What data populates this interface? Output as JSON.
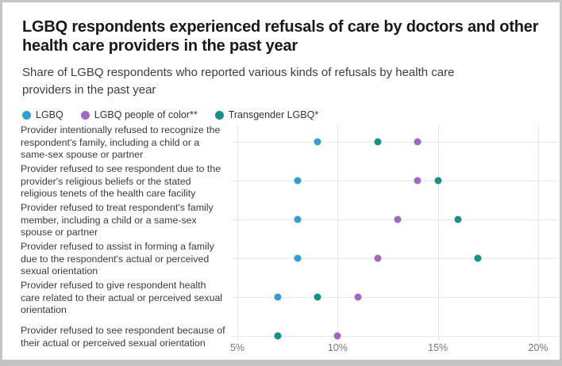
{
  "header": {
    "title": "LGBQ respondents experienced refusals of care by doctors and other health care providers in the past year",
    "subtitle": "Share of LGBQ respondents who reported various kinds of refusals by health care providers in the past year"
  },
  "chart_data": {
    "type": "scatter",
    "variant": "horizontal-dot-plot",
    "title": "LGBQ respondents experienced refusals of care by doctors and other health care providers in the past year",
    "subtitle": "Share of LGBQ respondents who reported various kinds of refusals by health care providers in the past year",
    "categories": [
      "Provider intentionally refused to recognize the respondent's family, including a child or a same-sex spouse or partner",
      "Provider refused to see respondent due to the provider's religious beliefs or the stated religious tenets of the health care facility",
      "Provider refused to treat respondent's family member, including a child or a same-sex spouse or partner",
      "Provider refused to assist in forming a family due to the respondent's actual or perceived sexual orientation",
      "Provider refused to give respondent health care related to their actual or perceived sexual orientation",
      "Provider refused to see respondent because of their actual or perceived sexual orientation"
    ],
    "series": [
      {
        "name": "LGBQ",
        "color": "#2f9ed8",
        "values": [
          9,
          8,
          8,
          8,
          7,
          7
        ]
      },
      {
        "name": "LGBQ people of color**",
        "color": "#a565c8",
        "values": [
          14,
          14,
          13,
          12,
          11,
          10
        ]
      },
      {
        "name": "Transgender LGBQ*",
        "color": "#13918a",
        "values": [
          12,
          15,
          16,
          17,
          9,
          7
        ]
      }
    ],
    "x_axis": {
      "unit": "%",
      "min": 5,
      "max": 20,
      "ticks": [
        {
          "value": 5,
          "label": "5%"
        },
        {
          "value": 10,
          "label": "10%"
        },
        {
          "value": 15,
          "label": "15%"
        },
        {
          "value": 20,
          "label": "20%"
        }
      ]
    },
    "grid": true,
    "legend_position": "top-left"
  }
}
